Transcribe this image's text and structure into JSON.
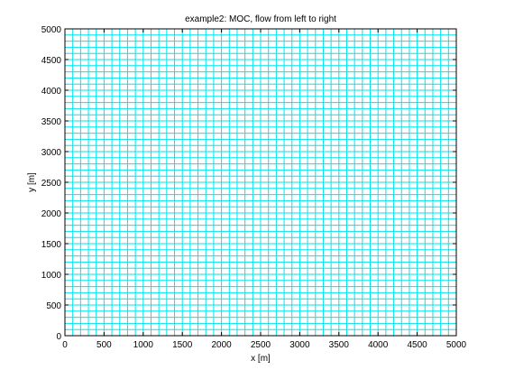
{
  "chart_data": {
    "type": "line",
    "title": "example2: MOC, flow from left to right",
    "xlabel": "x [m]",
    "ylabel": "y [m]",
    "xlim": [
      0,
      5000
    ],
    "ylim": [
      0,
      5000
    ],
    "x_ticks": [
      0,
      500,
      1000,
      1500,
      2000,
      2500,
      3000,
      3500,
      4000,
      4500,
      5000
    ],
    "y_ticks": [
      0,
      500,
      1000,
      1500,
      2000,
      2500,
      3000,
      3500,
      4000,
      4500,
      5000
    ],
    "x_tick_labels": [
      "0",
      "500",
      "1000",
      "1500",
      "2000",
      "2500",
      "3000",
      "3500",
      "4000",
      "4500",
      "5000"
    ],
    "y_tick_labels": [
      "0",
      "500",
      "1000",
      "1500",
      "2000",
      "2500",
      "3000",
      "3500",
      "4000",
      "4500",
      "5000"
    ],
    "series": [
      {
        "values": {
          "vertical_lines_x_start": 0,
          "vertical_lines_x_step": 100,
          "vertical_lines_x_end": 5000,
          "horizontal_lines_y_start": 0,
          "horizontal_lines_y_step": 100,
          "horizontal_lines_y_end": 5000
        },
        "color": "#00e5ee"
      }
    ],
    "grid": false,
    "legend": "none"
  }
}
